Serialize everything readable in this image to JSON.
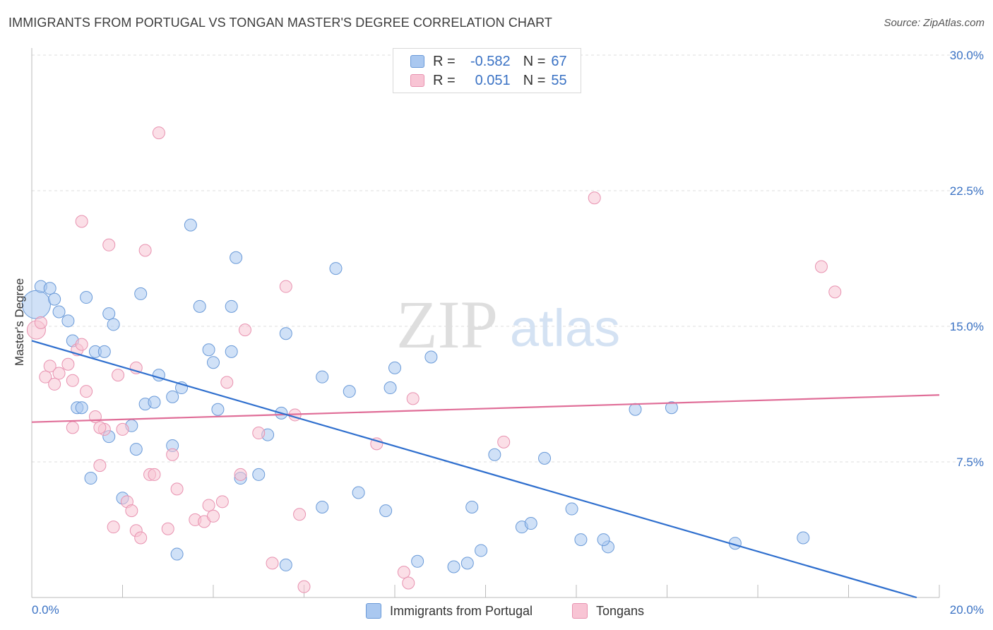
{
  "header": {
    "title": "IMMIGRANTS FROM PORTUGAL VS TONGAN MASTER'S DEGREE CORRELATION CHART",
    "source": "Source: ZipAtlas.com"
  },
  "legend": {
    "series1": {
      "r_label": "R =",
      "r_value": "-0.582",
      "n_label": "N =",
      "n_value": "67"
    },
    "series2": {
      "r_label": "R =",
      "r_value": "0.051",
      "n_label": "N =",
      "n_value": "55"
    }
  },
  "colors": {
    "blue_fill": "#aac8f0",
    "blue_stroke": "#6a9ad8",
    "blue_line": "#2f6fce",
    "pink_fill": "#f8c4d4",
    "pink_stroke": "#e892b0",
    "pink_line": "#e06e98",
    "tick_label": "#3a72c4"
  },
  "chart_data": {
    "type": "scatter",
    "title": "IMMIGRANTS FROM PORTUGAL VS TONGAN MASTER'S DEGREE CORRELATION CHART",
    "xlabel": "",
    "ylabel": "Master's Degree",
    "xlim": [
      0,
      20
    ],
    "ylim": [
      0,
      30
    ],
    "x_tick_labels": [
      "0.0%",
      "20.0%"
    ],
    "y_ticks": [
      7.5,
      15.0,
      22.5,
      30.0
    ],
    "y_tick_labels": [
      "7.5%",
      "15.0%",
      "22.5%",
      "30.0%"
    ],
    "grid": true,
    "legend_position": "top-center",
    "watermark": {
      "zip": "ZIP",
      "atlas": "atlas"
    },
    "series": [
      {
        "name": "Immigrants from Portugal",
        "trend": {
          "x1": 0.0,
          "y1": 14.2,
          "x2": 19.5,
          "y2": 0.0
        },
        "points": [
          [
            0.1,
            16.2
          ],
          [
            0.2,
            17.2
          ],
          [
            0.4,
            17.1
          ],
          [
            0.5,
            16.5
          ],
          [
            0.6,
            15.8
          ],
          [
            0.8,
            15.3
          ],
          [
            0.9,
            14.2
          ],
          [
            1.2,
            16.6
          ],
          [
            1.4,
            13.6
          ],
          [
            1.6,
            13.6
          ],
          [
            1.7,
            15.7
          ],
          [
            1.8,
            15.1
          ],
          [
            2.4,
            16.8
          ],
          [
            2.8,
            12.3
          ],
          [
            3.5,
            20.6
          ],
          [
            3.7,
            16.1
          ],
          [
            3.9,
            13.7
          ],
          [
            4.0,
            13.0
          ],
          [
            4.4,
            13.6
          ],
          [
            4.4,
            16.1
          ],
          [
            4.5,
            18.8
          ],
          [
            5.6,
            14.6
          ],
          [
            6.7,
            18.2
          ],
          [
            7.0,
            11.4
          ],
          [
            8.0,
            12.7
          ],
          [
            7.9,
            11.6
          ],
          [
            8.8,
            13.3
          ],
          [
            6.4,
            12.2
          ],
          [
            1.0,
            10.5
          ],
          [
            1.1,
            10.5
          ],
          [
            2.5,
            10.7
          ],
          [
            2.7,
            10.8
          ],
          [
            3.1,
            11.1
          ],
          [
            3.3,
            11.6
          ],
          [
            4.1,
            10.4
          ],
          [
            5.5,
            10.2
          ],
          [
            1.7,
            8.9
          ],
          [
            2.2,
            9.5
          ],
          [
            2.3,
            8.2
          ],
          [
            3.1,
            8.4
          ],
          [
            5.2,
            9.0
          ],
          [
            1.3,
            6.6
          ],
          [
            2.0,
            5.5
          ],
          [
            4.6,
            6.6
          ],
          [
            5.0,
            6.8
          ],
          [
            6.4,
            5.0
          ],
          [
            7.2,
            5.8
          ],
          [
            7.8,
            4.8
          ],
          [
            8.5,
            2.0
          ],
          [
            9.3,
            1.7
          ],
          [
            9.6,
            1.9
          ],
          [
            9.7,
            5.0
          ],
          [
            9.9,
            2.6
          ],
          [
            10.2,
            7.9
          ],
          [
            10.8,
            3.9
          ],
          [
            11.0,
            4.1
          ],
          [
            11.3,
            7.7
          ],
          [
            11.9,
            4.9
          ],
          [
            12.1,
            3.2
          ],
          [
            12.7,
            2.8
          ],
          [
            12.6,
            3.2
          ],
          [
            13.3,
            10.4
          ],
          [
            14.1,
            10.5
          ],
          [
            15.5,
            3.0
          ],
          [
            17.0,
            3.3
          ],
          [
            3.2,
            2.4
          ],
          [
            5.6,
            1.8
          ]
        ]
      },
      {
        "name": "Tongans",
        "trend": {
          "x1": 0.0,
          "y1": 9.7,
          "x2": 20.0,
          "y2": 11.2
        },
        "points": [
          [
            0.1,
            14.8
          ],
          [
            0.2,
            15.2
          ],
          [
            0.3,
            12.2
          ],
          [
            0.4,
            12.8
          ],
          [
            0.5,
            11.8
          ],
          [
            0.6,
            12.4
          ],
          [
            0.8,
            12.9
          ],
          [
            0.9,
            12.0
          ],
          [
            1.0,
            13.7
          ],
          [
            1.1,
            14.0
          ],
          [
            1.2,
            11.4
          ],
          [
            1.4,
            10.0
          ],
          [
            1.5,
            7.3
          ],
          [
            1.6,
            9.3
          ],
          [
            1.7,
            19.5
          ],
          [
            1.8,
            3.9
          ],
          [
            1.9,
            12.3
          ],
          [
            2.0,
            9.3
          ],
          [
            2.1,
            5.3
          ],
          [
            2.2,
            4.8
          ],
          [
            2.3,
            12.7
          ],
          [
            2.3,
            3.7
          ],
          [
            2.4,
            3.3
          ],
          [
            2.5,
            19.2
          ],
          [
            2.6,
            6.8
          ],
          [
            2.7,
            6.8
          ],
          [
            2.8,
            25.7
          ],
          [
            3.0,
            3.8
          ],
          [
            3.1,
            7.9
          ],
          [
            3.2,
            6.0
          ],
          [
            3.6,
            4.3
          ],
          [
            3.8,
            4.2
          ],
          [
            3.9,
            5.1
          ],
          [
            4.0,
            4.5
          ],
          [
            4.2,
            5.3
          ],
          [
            4.3,
            11.9
          ],
          [
            4.6,
            6.8
          ],
          [
            4.7,
            14.8
          ],
          [
            5.0,
            9.1
          ],
          [
            5.3,
            1.9
          ],
          [
            5.6,
            17.2
          ],
          [
            5.9,
            4.6
          ],
          [
            6.0,
            0.6
          ],
          [
            5.8,
            10.1
          ],
          [
            7.6,
            8.5
          ],
          [
            8.2,
            1.4
          ],
          [
            8.3,
            0.8
          ],
          [
            8.4,
            11.0
          ],
          [
            10.4,
            8.6
          ],
          [
            12.4,
            22.1
          ],
          [
            17.4,
            18.3
          ],
          [
            17.7,
            16.9
          ],
          [
            1.1,
            20.8
          ],
          [
            1.5,
            9.4
          ],
          [
            0.9,
            9.4
          ]
        ]
      }
    ]
  },
  "bottom_legend": {
    "series1": "Immigrants from Portugal",
    "series2": "Tongans"
  }
}
